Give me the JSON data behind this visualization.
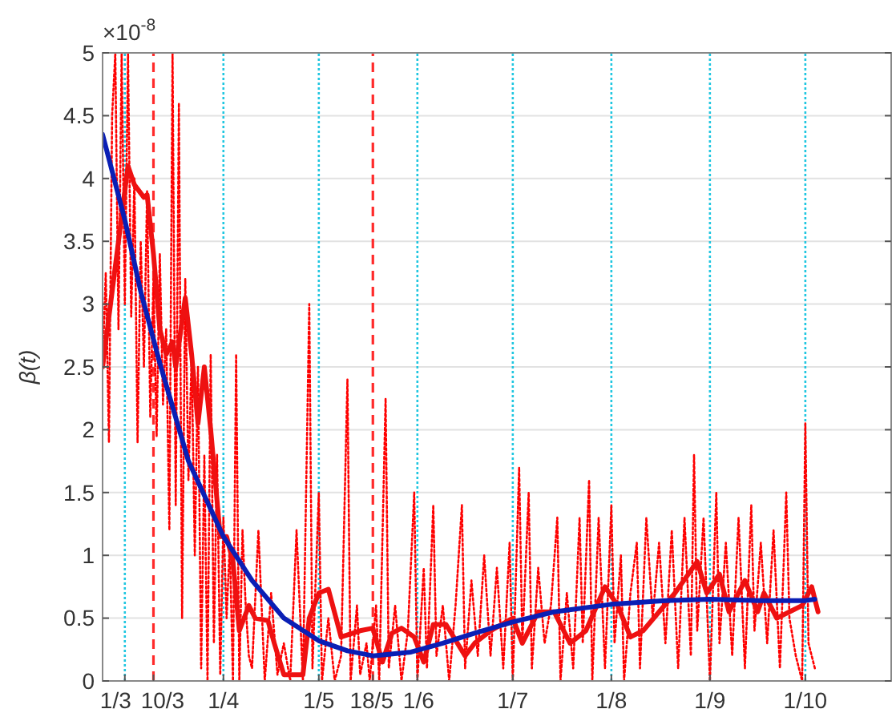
{
  "chart_data": {
    "type": "line",
    "ylabel": "β(t)",
    "annotations": [
      "×10$^{-8}$"
    ],
    "xlim": [
      "--02-23",
      "--10-28"
    ],
    "ylim": [
      0,
      5
    ],
    "xticks": [
      {
        "value": "--03-01",
        "label": "1/3"
      },
      {
        "value": "--03-10",
        "label": "10/3"
      },
      {
        "value": "--04-01",
        "label": "1/4"
      },
      {
        "value": "--05-01",
        "label": "1/5"
      },
      {
        "value": "--05-18",
        "label": "18/5"
      },
      {
        "value": "--06-01",
        "label": "1/6"
      },
      {
        "value": "--07-01",
        "label": "1/7"
      },
      {
        "value": "--08-01",
        "label": "1/8"
      },
      {
        "value": "--09-01",
        "label": "1/9"
      },
      {
        "value": "--10-01",
        "label": "1/10"
      }
    ],
    "yticks": [
      0,
      0.5,
      1,
      1.5,
      2,
      2.5,
      3,
      3.5,
      4,
      4.5,
      5
    ],
    "grid": "y",
    "marker": "none",
    "ref_lines": [
      {
        "axis": "x",
        "value": "--03-01",
        "color": "#1fc6e0",
        "line_style": "dotted"
      },
      {
        "axis": "x",
        "value": "--04-01",
        "color": "#1fc6e0",
        "line_style": "dotted"
      },
      {
        "axis": "x",
        "value": "--05-01",
        "color": "#1fc6e0",
        "line_style": "dotted"
      },
      {
        "axis": "x",
        "value": "--06-01",
        "color": "#1fc6e0",
        "line_style": "dotted"
      },
      {
        "axis": "x",
        "value": "--07-01",
        "color": "#1fc6e0",
        "line_style": "dotted"
      },
      {
        "axis": "x",
        "value": "--08-01",
        "color": "#1fc6e0",
        "line_style": "dotted"
      },
      {
        "axis": "x",
        "value": "--09-01",
        "color": "#1fc6e0",
        "line_style": "dotted"
      },
      {
        "axis": "x",
        "value": "--10-01",
        "color": "#1fc6e0",
        "line_style": "dotted"
      },
      {
        "axis": "x",
        "value": "--03-10",
        "color": "#ff2a2a",
        "line_style": "dashed"
      },
      {
        "axis": "x",
        "value": "--05-18",
        "color": "#ff2a2a",
        "line_style": "dashed"
      }
    ],
    "series": [
      {
        "color": "#ff0000",
        "line_style": "dotted",
        "x": [
          "--02-23",
          "--02-24",
          "--02-25",
          "--02-26",
          "--02-27",
          "--02-28",
          "--02-29",
          "--03-01",
          "--03-02",
          "--03-03",
          "--03-04",
          "--03-05",
          "--03-06",
          "--03-07",
          "--03-08",
          "--03-09",
          "--03-10",
          "--03-11",
          "--03-12",
          "--03-13",
          "--03-14",
          "--03-15",
          "--03-16",
          "--03-17",
          "--03-18",
          "--03-19",
          "--03-20",
          "--03-21",
          "--03-22",
          "--03-23",
          "--03-24",
          "--03-25",
          "--03-26",
          "--03-27",
          "--03-28",
          "--03-29",
          "--03-30",
          "--03-31",
          "--04-01",
          "--04-02",
          "--04-03",
          "--04-04",
          "--04-05",
          "--04-06",
          "--04-07",
          "--04-08",
          "--04-09",
          "--04-10",
          "--04-12",
          "--04-14",
          "--04-16",
          "--04-18",
          "--04-20",
          "--04-22",
          "--04-24",
          "--04-26",
          "--04-28",
          "--04-29",
          "--05-01",
          "--05-02",
          "--05-04",
          "--05-06",
          "--05-08",
          "--05-10",
          "--05-11",
          "--05-13",
          "--05-14",
          "--05-16",
          "--05-17",
          "--05-19",
          "--05-20",
          "--05-22",
          "--05-23",
          "--05-25",
          "--05-27",
          "--05-29",
          "--05-31",
          "--06-01",
          "--06-03",
          "--06-04",
          "--06-06",
          "--06-07",
          "--06-09",
          "--06-11",
          "--06-13",
          "--06-15",
          "--06-16",
          "--06-18",
          "--06-20",
          "--06-22",
          "--06-24",
          "--06-26",
          "--06-28",
          "--06-30",
          "--07-01",
          "--07-03",
          "--07-04",
          "--07-06",
          "--07-07",
          "--07-09",
          "--07-11",
          "--07-13",
          "--07-15",
          "--07-16",
          "--07-18",
          "--07-20",
          "--07-22",
          "--07-23",
          "--07-25",
          "--07-26",
          "--07-28",
          "--07-30",
          "--08-01",
          "--08-02",
          "--08-04",
          "--08-05",
          "--08-07",
          "--08-09",
          "--08-10",
          "--08-12",
          "--08-14",
          "--08-16",
          "--08-18",
          "--08-20",
          "--08-22",
          "--08-24",
          "--08-26",
          "--08-27",
          "--08-28",
          "--08-30",
          "--09-01",
          "--09-03",
          "--09-04",
          "--09-06",
          "--09-08",
          "--09-10",
          "--09-12",
          "--09-14",
          "--09-15",
          "--09-17",
          "--09-19",
          "--09-21",
          "--09-23",
          "--09-25",
          "--09-26",
          "--09-28",
          "--09-30",
          "--10-01",
          "--10-02",
          "--10-04"
        ],
        "values": [
          2.5,
          3.25,
          1.9,
          4.5,
          5,
          2.8,
          5,
          3.0,
          5,
          2.9,
          4.0,
          1.9,
          3.5,
          2.5,
          3.9,
          2.1,
          3.2,
          1.95,
          3.4,
          2.2,
          2.8,
          1.2,
          5,
          1.4,
          4.6,
          0.5,
          3.2,
          1.6,
          2.6,
          1.0,
          2.5,
          0.1,
          1.8,
          0.0,
          2.6,
          0.3,
          1.8,
          0.05,
          1.3,
          0.5,
          1.1,
          0.0,
          2.6,
          0.0,
          1.2,
          0.6,
          0.2,
          0.1,
          1.2,
          0.0,
          0.7,
          0.05,
          0.3,
          0.0,
          1.2,
          0.0,
          3.0,
          0.1,
          1.5,
          0.0,
          0.5,
          0.0,
          0.2,
          2.4,
          0.0,
          0.6,
          0.05,
          0.3,
          0.0,
          0.6,
          0.0,
          2.25,
          0.1,
          0.6,
          0.0,
          0.4,
          1.5,
          0.0,
          0.9,
          0.1,
          1.4,
          0.2,
          0.6,
          0.0,
          0.6,
          1.4,
          0.1,
          0.8,
          0.2,
          1.0,
          0.2,
          0.9,
          0.1,
          1.1,
          0.0,
          1.7,
          0.3,
          1.5,
          0.1,
          0.9,
          0.3,
          0.6,
          1.3,
          0.0,
          0.7,
          0.1,
          1.3,
          0.3,
          1.6,
          0.0,
          1.3,
          0.1,
          1.4,
          0.3,
          1.0,
          0.0,
          0.7,
          1.1,
          0.1,
          1.3,
          0.5,
          1.1,
          0.3,
          1.2,
          0.1,
          1.3,
          0.2,
          1.8,
          0.4,
          1.3,
          0.0,
          1.5,
          0.3,
          1.1,
          0.2,
          1.3,
          0.1,
          1.4,
          0.4,
          1.1,
          0.3,
          1.2,
          0.1,
          1.5,
          0.5,
          0.2,
          0.0,
          2.05,
          0.3,
          0.1
        ]
      },
      {
        "color": "#ee1111",
        "line_style": "solid",
        "x": [
          "--02-23",
          "--03-02",
          "--03-04",
          "--03-07",
          "--03-08",
          "--03-10",
          "--03-12",
          "--03-14",
          "--03-16",
          "--03-17",
          "--03-20",
          "--03-22",
          "--03-24",
          "--03-26",
          "--03-28",
          "--03-31",
          "--04-02",
          "--04-04",
          "--04-06",
          "--04-09",
          "--04-11",
          "--04-15",
          "--04-17",
          "--04-20",
          "--04-26",
          "--04-28",
          "--05-01",
          "--05-04",
          "--05-08",
          "--05-14",
          "--05-18",
          "--05-21",
          "--05-24",
          "--05-27",
          "--05-31",
          "--06-03",
          "--06-06",
          "--06-10",
          "--06-16",
          "--06-19",
          "--06-24",
          "--07-01",
          "--07-04",
          "--07-09",
          "--07-14",
          "--07-19",
          "--07-24",
          "--07-30",
          "--08-03",
          "--08-07",
          "--08-11",
          "--08-16",
          "--08-21",
          "--08-28",
          "--08-31",
          "--09-04",
          "--09-07",
          "--09-12",
          "--09-16",
          "--09-18",
          "--09-22",
          "--09-26",
          "--09-30",
          "--10-03",
          "--10-05"
        ],
        "values": [
          2.5,
          4.1,
          3.95,
          3.85,
          3.87,
          3.4,
          2.8,
          2.6,
          2.7,
          2.5,
          3.05,
          2.6,
          2.05,
          2.5,
          2.0,
          1.15,
          1.15,
          0.95,
          0.4,
          0.6,
          0.5,
          0.48,
          0.3,
          0.05,
          0.05,
          0.5,
          0.7,
          0.73,
          0.35,
          0.4,
          0.42,
          0.15,
          0.38,
          0.42,
          0.35,
          0.15,
          0.45,
          0.45,
          0.2,
          0.3,
          0.4,
          0.5,
          0.3,
          0.55,
          0.55,
          0.3,
          0.4,
          0.75,
          0.6,
          0.35,
          0.4,
          0.55,
          0.7,
          0.95,
          0.7,
          0.85,
          0.55,
          0.8,
          0.55,
          0.7,
          0.5,
          0.55,
          0.6,
          0.75,
          0.55
        ]
      },
      {
        "color": "#0a1fb5",
        "line_style": "solid",
        "x": [
          "--02-23",
          "--03-01",
          "--03-06",
          "--03-12",
          "--03-21",
          "--04-01",
          "--04-10",
          "--04-20",
          "--05-01",
          "--05-10",
          "--05-18",
          "--05-30",
          "--06-09",
          "--06-19",
          "--07-01",
          "--07-14",
          "--08-01",
          "--08-18",
          "--09-01",
          "--09-17",
          "--10-01",
          "--10-04"
        ],
        "values": [
          4.35,
          3.67,
          3.1,
          2.53,
          1.75,
          1.15,
          0.8,
          0.5,
          0.32,
          0.24,
          0.2,
          0.23,
          0.3,
          0.38,
          0.47,
          0.55,
          0.61,
          0.64,
          0.65,
          0.64,
          0.64,
          0.65
        ]
      }
    ]
  }
}
